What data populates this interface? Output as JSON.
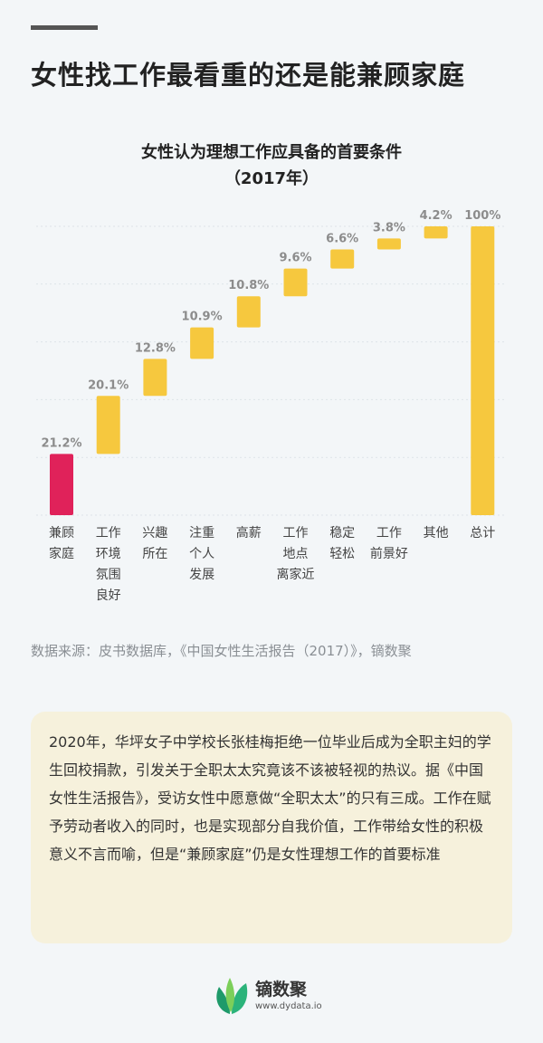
{
  "headline": "女性找工作最看重的还是能兼顾家庭",
  "chart_data": {
    "type": "waterfall",
    "title": "女性认为理想工作应具备的首要条件",
    "subtitle": "（2017年）",
    "categories": [
      [
        "兼顾",
        "家庭"
      ],
      [
        "工作",
        "环境",
        "氛围",
        "良好"
      ],
      [
        "兴趣",
        "所在"
      ],
      [
        "注重",
        "个人",
        "发展"
      ],
      [
        "高薪"
      ],
      [
        "工作",
        "地点",
        "离家近"
      ],
      [
        "稳定",
        "轻松"
      ],
      [
        "工作",
        "前景好"
      ],
      [
        "其他"
      ],
      [
        "总计"
      ]
    ],
    "values": [
      21.2,
      20.1,
      12.8,
      10.9,
      10.8,
      9.6,
      6.6,
      3.8,
      4.2,
      100
    ],
    "value_labels": [
      "21.2%",
      "20.1%",
      "12.8%",
      "10.9%",
      "10.8%",
      "9.6%",
      "6.6%",
      "3.8%",
      "4.2%",
      "100%"
    ],
    "total_index": 9,
    "highlight_index": 0,
    "ylim": [
      0,
      100
    ],
    "colors": {
      "highlight": "#e0225a",
      "bar": "#f6c83e",
      "label": "#8c8c8c",
      "grid": "#dde3e8"
    }
  },
  "source": "数据来源：皮书数据库，《中国女性生活报告（2017）》，镝数聚",
  "note": "2020年，华坪女子中学校长张桂梅拒绝一位毕业后成为全职主妇的学生回校捐款，引发关于全职太太究竟该不该被轻视的热议。据《中国女性生活报告》，受访女性中愿意做“全职太太”的只有三成。工作在赋予劳动者收入的同时，也是实现部分自我价值，工作带给女性的积极意义不言而喻，但是“兼顾家庭”仍是女性理想工作的首要标准",
  "logo": {
    "name": "镝数聚",
    "url": "www.dydata.io"
  }
}
